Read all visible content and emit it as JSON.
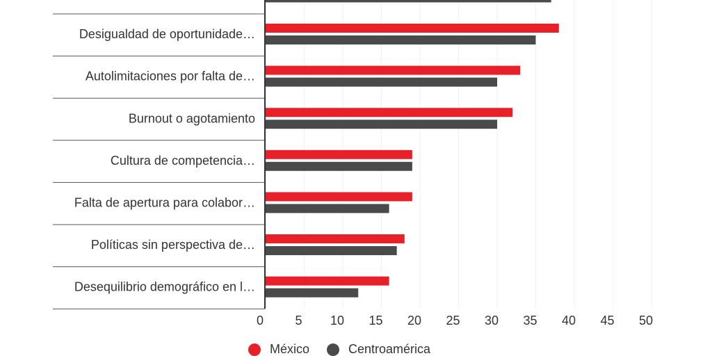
{
  "chart_data": {
    "type": "hbar",
    "categories": [
      null,
      "Desigualdad de oportunidade…",
      "Autolimitaciones por falta de…",
      "Burnout o agotamiento",
      "Cultura de competencia…",
      "Falta de apertura para colabor…",
      "Políticas sin perspectiva de…",
      "Desequilibrio demográfico en l…"
    ],
    "series": [
      {
        "name": "México",
        "color": "#e8202a",
        "values": [
          null,
          38,
          33,
          32,
          19,
          19,
          18,
          16
        ]
      },
      {
        "name": "Centroamérica",
        "color": "#4a4a4a",
        "values": [
          37,
          35,
          30,
          30,
          19,
          16,
          17,
          12
        ]
      }
    ],
    "xlim": [
      0,
      50
    ],
    "xticks": [
      0,
      5,
      10,
      15,
      20,
      25,
      30,
      35,
      40,
      45,
      50
    ]
  }
}
